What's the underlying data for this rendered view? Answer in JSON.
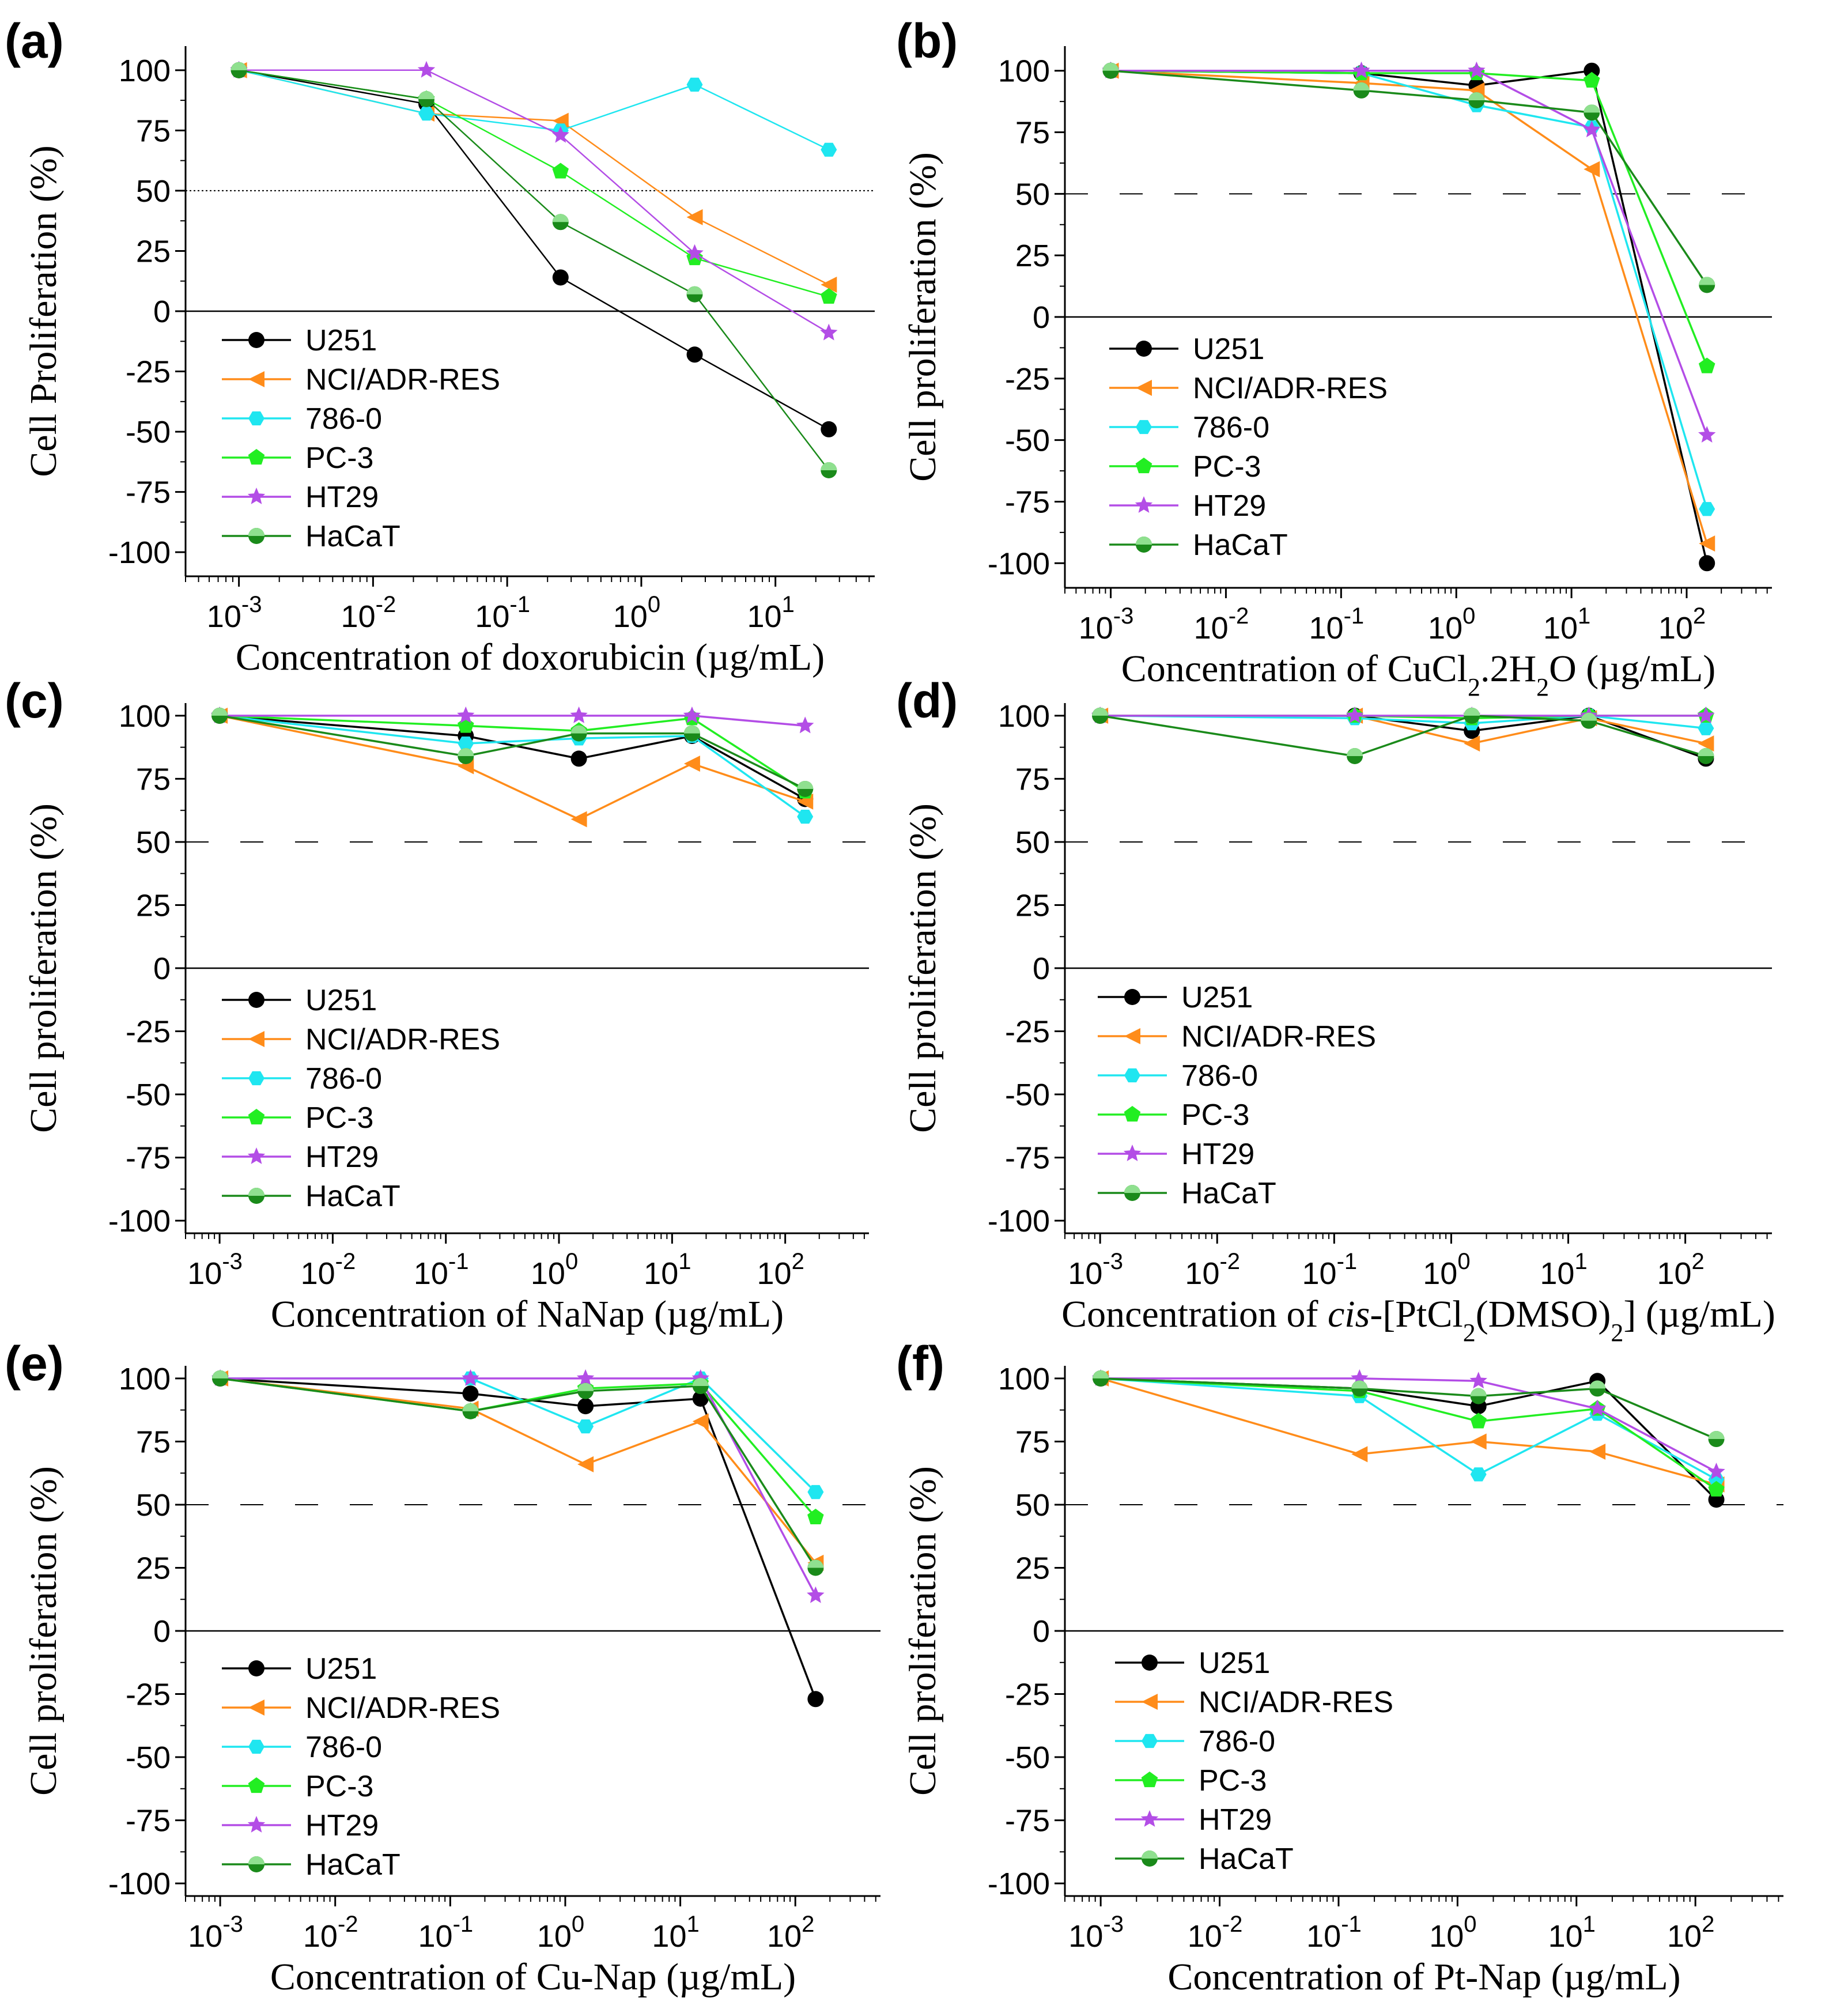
{
  "series_styles": [
    {
      "name": "U251",
      "color": "#000000",
      "marker": "circle"
    },
    {
      "name": "NCI/ADR-RES",
      "color": "#ff8c1a",
      "marker": "triangle-left"
    },
    {
      "name": "786-0",
      "color": "#1fe6f0",
      "marker": "hexagon"
    },
    {
      "name": "PC-3",
      "color": "#22ee22",
      "marker": "pentagon"
    },
    {
      "name": "HT29",
      "color": "#b34de6",
      "marker": "star"
    },
    {
      "name": "HaCaT",
      "color": "#1a8a1a",
      "marker": "half-circle"
    }
  ],
  "chart_data": [
    {
      "panel": "(a)",
      "type": "line",
      "xscale": "log",
      "xlim": [
        0.0004,
        55
      ],
      "ylim": [
        -110,
        110
      ],
      "xticks": [
        0.001,
        0.01,
        0.1,
        1,
        10
      ],
      "xtick_labels": [
        [
          "10",
          "-3"
        ],
        [
          "10",
          "-2"
        ],
        [
          "10",
          "-1"
        ],
        [
          "10",
          "0"
        ],
        [
          "10",
          "1"
        ]
      ],
      "yticks": [
        100,
        75,
        50,
        25,
        0,
        -25,
        -50,
        -75,
        -100
      ],
      "ytick_labels": [
        "100",
        "75",
        "50",
        "25",
        "0",
        "-25",
        "-50",
        "-75",
        "-100"
      ],
      "ylabel": "Cell Proliferation (%)",
      "xlabel": [
        {
          "t": "Concentration of doxorubicin (µg/mL)"
        }
      ],
      "reference_lines": [
        50,
        0
      ],
      "series": [
        {
          "name": "U251",
          "x": [
            0.001,
            0.025,
            0.25,
            2.5,
            25
          ],
          "values": [
            100,
            86,
            14,
            -18,
            -49
          ]
        },
        {
          "name": "NCI/ADR-RES",
          "x": [
            0.001,
            0.025,
            0.25,
            2.5,
            25
          ],
          "values": [
            100,
            82,
            79,
            39,
            11
          ]
        },
        {
          "name": "786-0",
          "x": [
            0.001,
            0.025,
            0.25,
            2.5,
            25
          ],
          "values": [
            100,
            82,
            75,
            94,
            67
          ]
        },
        {
          "name": "PC-3",
          "x": [
            0.001,
            0.025,
            0.25,
            2.5,
            25
          ],
          "values": [
            100,
            88,
            58,
            22,
            6
          ]
        },
        {
          "name": "HT29",
          "x": [
            0.001,
            0.025,
            0.25,
            2.5,
            25
          ],
          "values": [
            100,
            100,
            73,
            24,
            -9
          ]
        },
        {
          "name": "HaCaT",
          "x": [
            0.001,
            0.025,
            0.25,
            2.5,
            25
          ],
          "values": [
            100,
            88,
            37,
            7,
            -66
          ]
        }
      ]
    },
    {
      "panel": "(b)",
      "type": "line",
      "xscale": "log",
      "xlim": [
        0.0004,
        550
      ],
      "ylim": [
        -110,
        110
      ],
      "xticks": [
        0.001,
        0.01,
        0.1,
        1,
        10,
        100
      ],
      "xtick_labels": [
        [
          "10",
          "-3"
        ],
        [
          "10",
          "-2"
        ],
        [
          "10",
          "-1"
        ],
        [
          "10",
          "0"
        ],
        [
          "10",
          "1"
        ],
        [
          "10",
          "2"
        ]
      ],
      "yticks": [
        100,
        75,
        50,
        25,
        0,
        -25,
        -50,
        -75,
        -100
      ],
      "ytick_labels": [
        "100",
        "75",
        "50",
        "25",
        "0",
        "-25",
        "-50",
        "-75",
        "-100"
      ],
      "ylabel": "Cell proliferation (%)",
      "xlabel": [
        {
          "t": "Concentration of CuCl"
        },
        {
          "t": "2",
          "sub": true
        },
        {
          "t": ".2H"
        },
        {
          "t": "2",
          "sub": true
        },
        {
          "t": "O (µg/mL)"
        }
      ],
      "reference_lines": [
        50,
        0
      ],
      "series": [
        {
          "name": "U251",
          "x": [
            0.001,
            0.15,
            1.5,
            15,
            150
          ],
          "values": [
            100,
            99,
            94,
            100,
            -100
          ]
        },
        {
          "name": "NCI/ADR-RES",
          "x": [
            0.001,
            0.15,
            1.5,
            15,
            150
          ],
          "values": [
            100,
            95,
            92,
            60,
            -92
          ]
        },
        {
          "name": "786-0",
          "x": [
            0.001,
            0.15,
            1.5,
            15,
            150
          ],
          "values": [
            100,
            99,
            86,
            77,
            -78
          ]
        },
        {
          "name": "PC-3",
          "x": [
            0.001,
            0.15,
            1.5,
            15,
            150
          ],
          "values": [
            100,
            99,
            99,
            96,
            -20
          ]
        },
        {
          "name": "HT29",
          "x": [
            0.001,
            0.15,
            1.5,
            15,
            150
          ],
          "values": [
            100,
            100,
            100,
            76,
            -48
          ]
        },
        {
          "name": "HaCaT",
          "x": [
            0.001,
            0.15,
            1.5,
            15,
            150
          ],
          "values": [
            100,
            92,
            88,
            83,
            13
          ]
        }
      ]
    },
    {
      "panel": "(c)",
      "type": "line",
      "xscale": "log",
      "xlim": [
        0.0005,
        550
      ],
      "ylim": [
        -105,
        105
      ],
      "xticks": [
        0.001,
        0.01,
        0.1,
        1,
        10,
        100
      ],
      "xtick_labels": [
        [
          "10",
          "-3"
        ],
        [
          "10",
          "-2"
        ],
        [
          "10",
          "-1"
        ],
        [
          "10",
          "0"
        ],
        [
          "10",
          "1"
        ],
        [
          "10",
          "2"
        ]
      ],
      "yticks": [
        100,
        75,
        50,
        25,
        0,
        -25,
        -50,
        -75,
        -100
      ],
      "ytick_labels": [
        "100",
        "75",
        "50",
        "25",
        "0",
        "-25",
        "-50",
        "-75",
        "-100"
      ],
      "ylabel": "Cell proliferation (%)",
      "xlabel": [
        {
          "t": "Concentration of NaNap (µg/mL)"
        }
      ],
      "reference_lines": [
        50,
        0
      ],
      "series": [
        {
          "name": "U251",
          "x": [
            0.001,
            0.15,
            1.5,
            15,
            150
          ],
          "values": [
            100,
            92,
            83,
            92,
            67
          ]
        },
        {
          "name": "NCI/ADR-RES",
          "x": [
            0.001,
            0.15,
            1.5,
            15,
            150
          ],
          "values": [
            100,
            80,
            59,
            81,
            66
          ]
        },
        {
          "name": "786-0",
          "x": [
            0.001,
            0.15,
            1.5,
            15,
            150
          ],
          "values": [
            100,
            89,
            91,
            92,
            60
          ]
        },
        {
          "name": "PC-3",
          "x": [
            0.001,
            0.15,
            1.5,
            15,
            150
          ],
          "values": [
            100,
            96,
            94,
            99,
            70
          ]
        },
        {
          "name": "HT29",
          "x": [
            0.001,
            0.15,
            1.5,
            15,
            150
          ],
          "values": [
            100,
            100,
            100,
            100,
            96
          ]
        },
        {
          "name": "HaCaT",
          "x": [
            0.001,
            0.15,
            1.5,
            15,
            150
          ],
          "values": [
            100,
            84,
            93,
            93,
            71
          ]
        }
      ]
    },
    {
      "panel": "(d)",
      "type": "line",
      "xscale": "log",
      "xlim": [
        0.0005,
        550
      ],
      "ylim": [
        -105,
        105
      ],
      "xticks": [
        0.001,
        0.01,
        0.1,
        1,
        10,
        100
      ],
      "xtick_labels": [
        [
          "10",
          "-3"
        ],
        [
          "10",
          "-2"
        ],
        [
          "10",
          "-1"
        ],
        [
          "10",
          "0"
        ],
        [
          "10",
          "1"
        ],
        [
          "10",
          "2"
        ]
      ],
      "yticks": [
        100,
        75,
        50,
        25,
        0,
        -25,
        -50,
        -75,
        -100
      ],
      "ytick_labels": [
        "100",
        "75",
        "50",
        "25",
        "0",
        "-25",
        "-50",
        "-75",
        "-100"
      ],
      "ylabel": "Cell proliferation (%)",
      "xlabel": [
        {
          "t": "Concentration of "
        },
        {
          "t": "cis",
          "it": true
        },
        {
          "t": "-[PtCl"
        },
        {
          "t": "2",
          "sub": true
        },
        {
          "t": "(DMSO)"
        },
        {
          "t": "2",
          "sub": true
        },
        {
          "t": "] (µg/mL)"
        }
      ],
      "reference_lines": [
        50,
        0
      ],
      "series": [
        {
          "name": "U251",
          "x": [
            0.001,
            0.15,
            1.5,
            15,
            150
          ],
          "values": [
            100,
            100,
            94,
            100,
            83
          ]
        },
        {
          "name": "NCI/ADR-RES",
          "x": [
            0.001,
            0.15,
            1.5,
            15,
            150
          ],
          "values": [
            100,
            100,
            89,
            99,
            89
          ]
        },
        {
          "name": "786-0",
          "x": [
            0.001,
            0.15,
            1.5,
            15,
            150
          ],
          "values": [
            100,
            99,
            97,
            100,
            95
          ]
        },
        {
          "name": "PC-3",
          "x": [
            0.001,
            0.15,
            1.5,
            15,
            150
          ],
          "values": [
            100,
            100,
            99,
            100,
            100
          ]
        },
        {
          "name": "HT29",
          "x": [
            0.001,
            0.15,
            1.5,
            15,
            150
          ],
          "values": [
            100,
            100,
            100,
            100,
            100
          ]
        },
        {
          "name": "HaCaT",
          "x": [
            0.001,
            0.15,
            1.5,
            15,
            150
          ],
          "values": [
            100,
            84,
            100,
            98,
            84
          ]
        }
      ]
    },
    {
      "panel": "(e)",
      "type": "line",
      "xscale": "log",
      "xlim": [
        0.0005,
        550
      ],
      "ylim": [
        -105,
        105
      ],
      "xticks": [
        0.001,
        0.01,
        0.1,
        1,
        10,
        100
      ],
      "xtick_labels": [
        [
          "10",
          "-3"
        ],
        [
          "10",
          "-2"
        ],
        [
          "10",
          "-1"
        ],
        [
          "10",
          "0"
        ],
        [
          "10",
          "1"
        ],
        [
          "10",
          "2"
        ]
      ],
      "yticks": [
        100,
        75,
        50,
        25,
        0,
        -25,
        -50,
        -75,
        -100
      ],
      "ytick_labels": [
        "100",
        "75",
        "50",
        "25",
        "0",
        "-25",
        "-50",
        "-75",
        "-100"
      ],
      "ylabel": "Cell proliferation (%)",
      "xlabel": [
        {
          "t": "Concentration of Cu-Nap (µg/mL)"
        }
      ],
      "reference_lines": [
        50,
        0
      ],
      "series": [
        {
          "name": "U251",
          "x": [
            0.001,
            0.15,
            1.5,
            15,
            150
          ],
          "values": [
            100,
            94,
            89,
            92,
            -27
          ]
        },
        {
          "name": "NCI/ADR-RES",
          "x": [
            0.001,
            0.15,
            1.5,
            15,
            150
          ],
          "values": [
            100,
            88,
            66,
            83,
            27
          ]
        },
        {
          "name": "786-0",
          "x": [
            0.001,
            0.15,
            1.5,
            15,
            150
          ],
          "values": [
            100,
            100,
            81,
            100,
            55
          ]
        },
        {
          "name": "PC-3",
          "x": [
            0.001,
            0.15,
            1.5,
            15,
            150
          ],
          "values": [
            100,
            87,
            96,
            98,
            45
          ]
        },
        {
          "name": "HT29",
          "x": [
            0.001,
            0.15,
            1.5,
            15,
            150
          ],
          "values": [
            100,
            100,
            100,
            100,
            14
          ]
        },
        {
          "name": "HaCaT",
          "x": [
            0.001,
            0.15,
            1.5,
            15,
            150
          ],
          "values": [
            100,
            87,
            95,
            97,
            25
          ]
        }
      ]
    },
    {
      "panel": "(f)",
      "type": "line",
      "xscale": "log",
      "xlim": [
        0.0005,
        550
      ],
      "ylim": [
        -105,
        105
      ],
      "xticks": [
        0.001,
        0.01,
        0.1,
        1,
        10,
        100
      ],
      "xtick_labels": [
        [
          "10",
          "-3"
        ],
        [
          "10",
          "-2"
        ],
        [
          "10",
          "-1"
        ],
        [
          "10",
          "0"
        ],
        [
          "10",
          "1"
        ],
        [
          "10",
          "2"
        ]
      ],
      "yticks": [
        100,
        75,
        50,
        25,
        0,
        -25,
        -50,
        -75,
        -100
      ],
      "ytick_labels": [
        "100",
        "75",
        "50",
        "25",
        "0",
        "-25",
        "-50",
        "-75",
        "-100"
      ],
      "ylabel": "Cell proliferation (%)",
      "xlabel": [
        {
          "t": "Concentration of Pt-Nap (µg/mL)"
        }
      ],
      "reference_lines": [
        50,
        0
      ],
      "series": [
        {
          "name": "U251",
          "x": [
            0.001,
            0.15,
            1.5,
            15,
            150
          ],
          "values": [
            100,
            96,
            89,
            99,
            52
          ]
        },
        {
          "name": "NCI/ADR-RES",
          "x": [
            0.001,
            0.15,
            1.5,
            15,
            150
          ],
          "values": [
            100,
            70,
            75,
            71,
            58
          ]
        },
        {
          "name": "786-0",
          "x": [
            0.001,
            0.15,
            1.5,
            15,
            150
          ],
          "values": [
            100,
            93,
            62,
            86,
            60
          ]
        },
        {
          "name": "PC-3",
          "x": [
            0.001,
            0.15,
            1.5,
            15,
            150
          ],
          "values": [
            100,
            95,
            83,
            88,
            56
          ]
        },
        {
          "name": "HT29",
          "x": [
            0.001,
            0.15,
            1.5,
            15,
            150
          ],
          "values": [
            100,
            100,
            99,
            88,
            63
          ]
        },
        {
          "name": "HaCaT",
          "x": [
            0.001,
            0.15,
            1.5,
            15,
            150
          ],
          "values": [
            100,
            96,
            93,
            96,
            76
          ]
        }
      ]
    }
  ]
}
